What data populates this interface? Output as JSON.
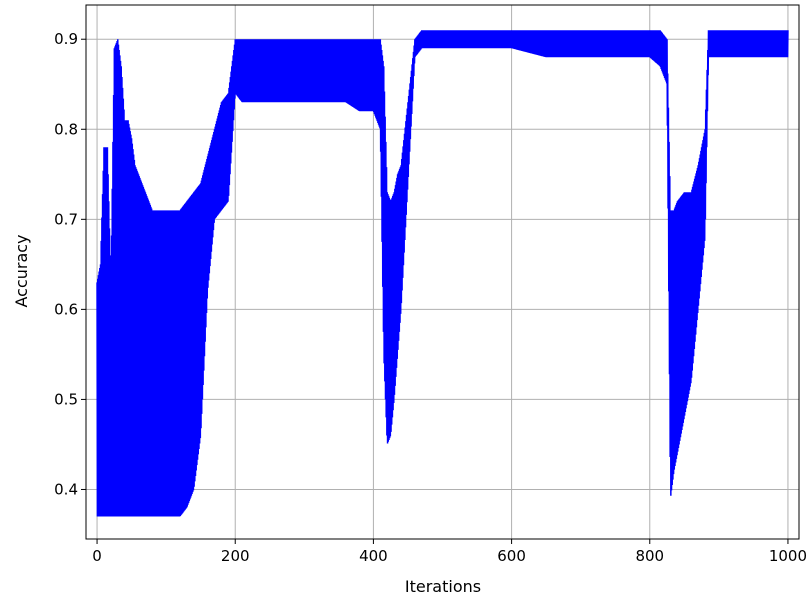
{
  "chart_data": {
    "type": "line",
    "title": "",
    "xlabel": "Iterations",
    "ylabel": "Accuracy",
    "xlim": [
      -16,
      1016
    ],
    "ylim": [
      0.345,
      0.938
    ],
    "x_ticks": [
      0,
      200,
      400,
      600,
      800,
      1000
    ],
    "y_ticks": [
      0.4,
      0.5,
      0.6,
      0.7,
      0.8,
      0.9
    ],
    "x_tick_labels": [
      "0",
      "200",
      "400",
      "600",
      "800",
      "1000"
    ],
    "y_tick_labels": [
      "0.4",
      "0.5",
      "0.6",
      "0.7",
      "0.8",
      "0.9"
    ],
    "grid": true,
    "series": [
      {
        "color": "#0000ff",
        "style": "oscillating-band",
        "envelope": {
          "x": [
            0,
            5,
            10,
            15,
            20,
            25,
            30,
            35,
            40,
            45,
            50,
            55,
            60,
            70,
            80,
            90,
            100,
            110,
            120,
            130,
            140,
            150,
            160,
            170,
            180,
            190,
            200,
            210,
            220,
            230,
            250,
            280,
            300,
            330,
            360,
            380,
            400,
            410,
            415,
            420,
            425,
            430,
            435,
            440,
            450,
            460,
            470,
            490,
            550,
            600,
            650,
            700,
            750,
            800,
            815,
            825,
            830,
            835,
            840,
            850,
            860,
            870,
            880,
            885,
            890,
            900,
            950,
            1000
          ],
          "upper": [
            0.63,
            0.65,
            0.78,
            0.78,
            0.63,
            0.89,
            0.9,
            0.87,
            0.81,
            0.81,
            0.79,
            0.76,
            0.75,
            0.73,
            0.71,
            0.71,
            0.71,
            0.71,
            0.71,
            0.72,
            0.73,
            0.74,
            0.77,
            0.8,
            0.83,
            0.84,
            0.9,
            0.9,
            0.9,
            0.9,
            0.9,
            0.9,
            0.9,
            0.9,
            0.9,
            0.9,
            0.9,
            0.9,
            0.87,
            0.73,
            0.72,
            0.73,
            0.75,
            0.76,
            0.83,
            0.9,
            0.91,
            0.91,
            0.91,
            0.91,
            0.91,
            0.91,
            0.91,
            0.91,
            0.91,
            0.9,
            0.71,
            0.71,
            0.72,
            0.73,
            0.73,
            0.76,
            0.8,
            0.91,
            0.91,
            0.91,
            0.91,
            0.91
          ],
          "lower": [
            0.37,
            0.37,
            0.37,
            0.37,
            0.37,
            0.37,
            0.37,
            0.37,
            0.37,
            0.37,
            0.37,
            0.37,
            0.37,
            0.37,
            0.37,
            0.37,
            0.37,
            0.37,
            0.37,
            0.38,
            0.4,
            0.46,
            0.62,
            0.7,
            0.71,
            0.72,
            0.84,
            0.83,
            0.83,
            0.83,
            0.83,
            0.83,
            0.83,
            0.83,
            0.83,
            0.82,
            0.82,
            0.8,
            0.55,
            0.45,
            0.46,
            0.5,
            0.55,
            0.6,
            0.74,
            0.88,
            0.89,
            0.89,
            0.89,
            0.89,
            0.88,
            0.88,
            0.88,
            0.88,
            0.87,
            0.85,
            0.39,
            0.42,
            0.44,
            0.48,
            0.52,
            0.6,
            0.68,
            0.88,
            0.88,
            0.88,
            0.88,
            0.88
          ]
        }
      }
    ]
  }
}
